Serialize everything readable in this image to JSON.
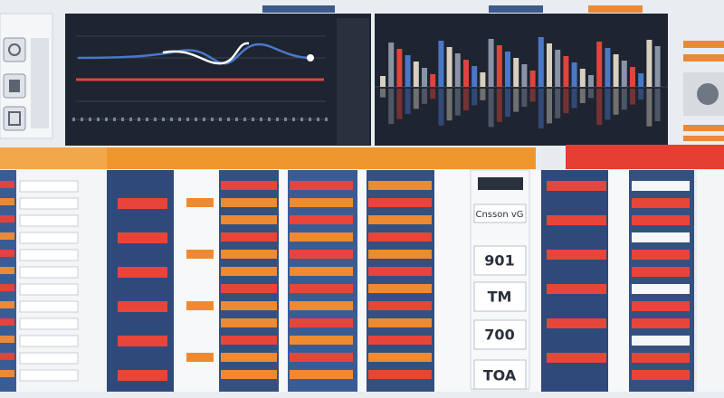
{
  "table": {
    "header": "Cnsson vG",
    "rows": [
      "901",
      "TM",
      "700",
      "TOA"
    ]
  }
}
